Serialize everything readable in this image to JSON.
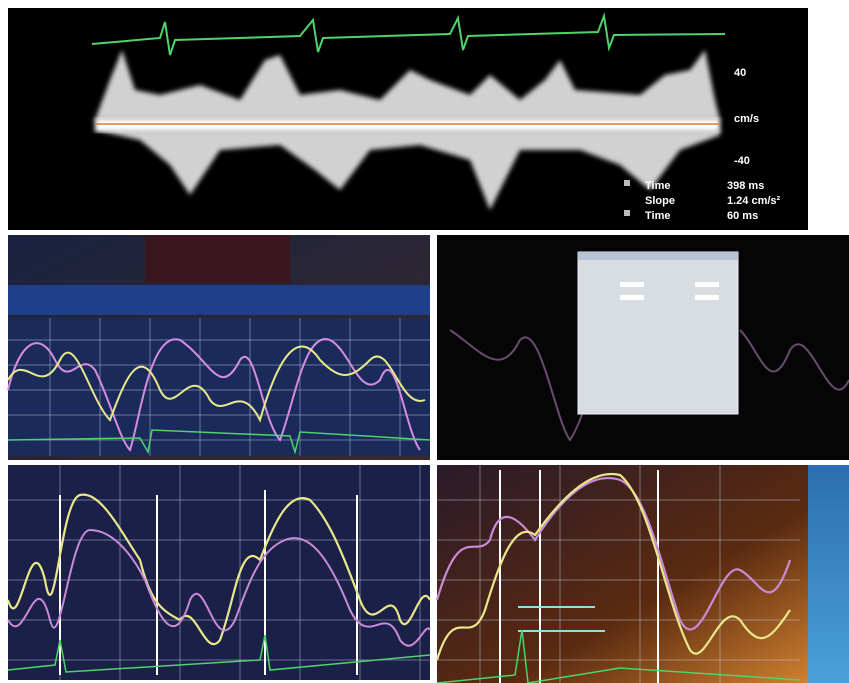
{
  "doppler": {
    "scale_top": "40",
    "scale_unit": "cm/s",
    "scale_bottom": "-40",
    "measurements": [
      {
        "label": "Time",
        "value": "398 ms"
      },
      {
        "label": "Slope",
        "value": "1.24 cm/s²"
      },
      {
        "label": "Time",
        "value": "60 ms"
      }
    ]
  }
}
